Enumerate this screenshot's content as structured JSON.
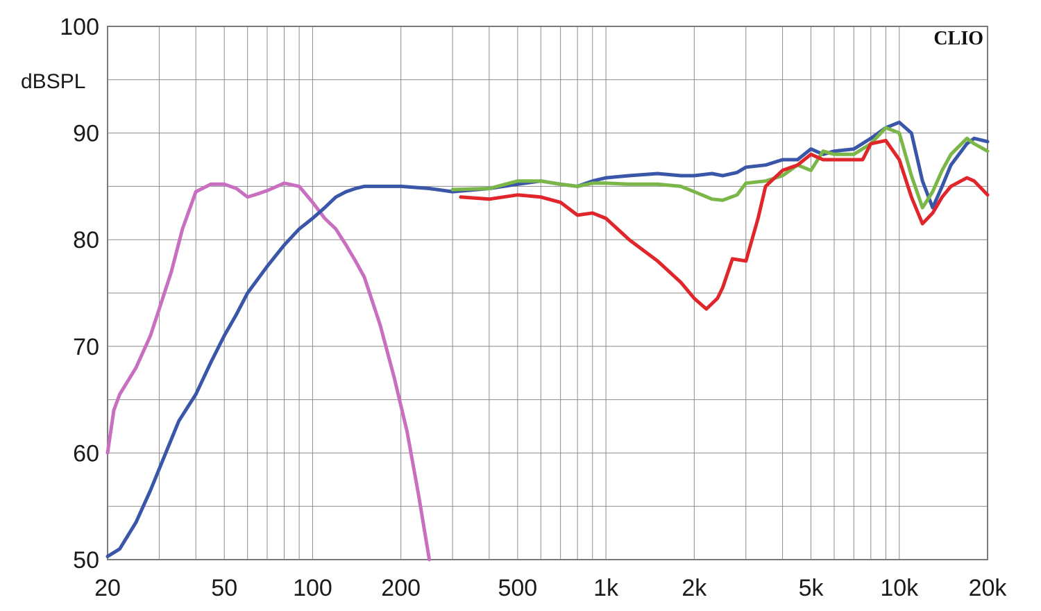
{
  "chart_data": {
    "type": "line",
    "brand_label": "CLIO",
    "ylabel": "dBSPL",
    "xscale": "log",
    "xlim": [
      20,
      20000
    ],
    "ylim": [
      50,
      100
    ],
    "grid": true,
    "y_ticks": [
      100,
      90,
      80,
      70,
      60,
      50
    ],
    "x_ticks": [
      {
        "value": 20,
        "label": "20"
      },
      {
        "value": 50,
        "label": "50"
      },
      {
        "value": 100,
        "label": "100"
      },
      {
        "value": 200,
        "label": "200"
      },
      {
        "value": 500,
        "label": "500"
      },
      {
        "value": 1000,
        "label": "1k"
      },
      {
        "value": 2000,
        "label": "2k"
      },
      {
        "value": 5000,
        "label": "5k"
      },
      {
        "value": 10000,
        "label": "10k"
      },
      {
        "value": 20000,
        "label": "20k"
      }
    ],
    "series": [
      {
        "color": "#c86fc0",
        "x": [
          20,
          21,
          22,
          25,
          28,
          30,
          33,
          36,
          40,
          45,
          50,
          55,
          60,
          65,
          70,
          80,
          90,
          100,
          110,
          120,
          130,
          140,
          150,
          170,
          190,
          210,
          230,
          250
        ],
        "y": [
          60,
          64,
          65.5,
          68,
          71,
          73.5,
          77,
          81,
          84.5,
          85.2,
          85.2,
          84.8,
          84.0,
          84.3,
          84.6,
          85.3,
          85,
          83.5,
          82,
          81,
          79.5,
          78,
          76.5,
          72,
          67,
          62,
          56,
          50
        ]
      },
      {
        "color": "#3a56a8",
        "x": [
          20,
          22,
          25,
          28,
          30,
          35,
          40,
          45,
          50,
          55,
          60,
          70,
          80,
          90,
          100,
          110,
          120,
          130,
          140,
          150,
          170,
          200,
          250,
          300,
          400,
          500,
          600,
          700,
          800,
          900,
          1000,
          1200,
          1500,
          1800,
          2000,
          2300,
          2500,
          2800,
          3000,
          3500,
          4000,
          4500,
          5000,
          5500,
          6000,
          7000,
          8000,
          9000,
          10000,
          11000,
          12000,
          13000,
          14000,
          15000,
          17000,
          18000,
          20000
        ],
        "y": [
          50.3,
          51,
          53.5,
          56.5,
          58.5,
          63,
          65.5,
          68.5,
          71,
          73,
          75,
          77.5,
          79.5,
          81,
          82,
          83,
          84,
          84.5,
          84.8,
          85,
          85,
          85,
          84.8,
          84.5,
          84.8,
          85.2,
          85.5,
          85.2,
          85,
          85.5,
          85.8,
          86,
          86.2,
          86,
          86,
          86.2,
          86,
          86.3,
          86.8,
          87,
          87.5,
          87.5,
          88.5,
          88,
          88.3,
          88.5,
          89.5,
          90.5,
          91,
          90,
          85.5,
          83,
          85,
          87,
          89,
          89.5,
          89.2
        ]
      },
      {
        "color": "#7ab648",
        "x": [
          300,
          400,
          500,
          600,
          700,
          800,
          900,
          1000,
          1200,
          1500,
          1800,
          2000,
          2300,
          2500,
          2800,
          3000,
          3500,
          4000,
          4500,
          5000,
          5500,
          6000,
          7000,
          8000,
          9000,
          10000,
          11000,
          12000,
          13000,
          14000,
          15000,
          17000,
          18000,
          20000
        ],
        "y": [
          84.7,
          84.8,
          85.5,
          85.5,
          85.2,
          85,
          85.3,
          85.3,
          85.2,
          85.2,
          85,
          84.5,
          83.8,
          83.7,
          84.2,
          85.3,
          85.5,
          86,
          87,
          86.5,
          88.3,
          88,
          88,
          89,
          90.5,
          90,
          86,
          83,
          84.5,
          86.5,
          88,
          89.5,
          89,
          88.3
        ]
      },
      {
        "color": "#e0262a",
        "x": [
          320,
          400,
          500,
          600,
          700,
          800,
          900,
          1000,
          1200,
          1500,
          1800,
          2000,
          2200,
          2400,
          2500,
          2700,
          3000,
          3300,
          3500,
          4000,
          4500,
          5000,
          5500,
          6000,
          7000,
          7500,
          8000,
          9000,
          10000,
          11000,
          12000,
          13000,
          14000,
          15000,
          17000,
          18000,
          20000
        ],
        "y": [
          84,
          83.8,
          84.2,
          84,
          83.5,
          82.3,
          82.5,
          82,
          80,
          78,
          76,
          74.5,
          73.5,
          74.5,
          75.5,
          78.2,
          78,
          82,
          85,
          86.5,
          87,
          88,
          87.5,
          87.5,
          87.5,
          87.5,
          89,
          89.3,
          87.5,
          84,
          81.5,
          82.5,
          84,
          85,
          85.8,
          85.5,
          84.2
        ]
      }
    ]
  }
}
